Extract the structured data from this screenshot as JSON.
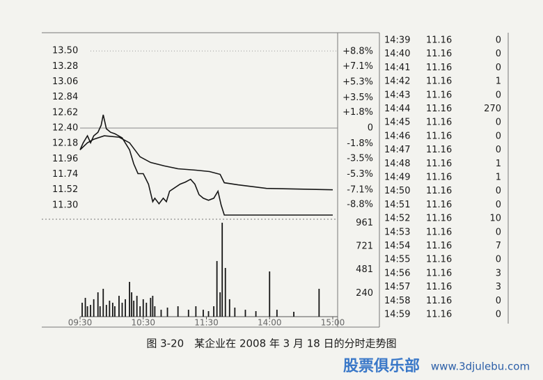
{
  "chart_data": [
    {
      "type": "line",
      "xlim": [
        0,
        240
      ],
      "ylim": [
        11.1,
        13.75
      ],
      "yticks": [
        {
          "value": 13.5,
          "label": "13.50"
        },
        {
          "value": 13.28,
          "label": "13.28"
        },
        {
          "value": 13.06,
          "label": "13.06"
        },
        {
          "value": 12.84,
          "label": "12.84"
        },
        {
          "value": 12.62,
          "label": "12.62"
        },
        {
          "value": 12.4,
          "label": "12.40"
        },
        {
          "value": 12.18,
          "label": "12.18"
        },
        {
          "value": 11.96,
          "label": "11.96"
        },
        {
          "value": 11.74,
          "label": "11.74"
        },
        {
          "value": 11.52,
          "label": "11.52"
        },
        {
          "value": 11.3,
          "label": "11.30"
        }
      ],
      "y2lim": [
        -10.48,
        10.89
      ],
      "y2ticks": [
        {
          "value": 8.8,
          "label": "+8.8%"
        },
        {
          "value": 7.1,
          "label": "+7.1%"
        },
        {
          "value": 5.3,
          "label": "+5.3%"
        },
        {
          "value": 3.5,
          "label": "+3.5%"
        },
        {
          "value": 1.8,
          "label": "+1.8%"
        },
        0,
        {
          "value": -1.8,
          "label": "-1.8%"
        },
        {
          "value": -3.5,
          "label": "-3.5%"
        },
        {
          "value": -5.3,
          "label": "-5.3%"
        },
        {
          "value": -7.1,
          "label": "-7.1%"
        },
        {
          "value": -8.8,
          "label": "-8.8%"
        }
      ],
      "series": [
        {
          "color": "#151515",
          "x": [
            0,
            3,
            7,
            10,
            13,
            17,
            20,
            22,
            25,
            29,
            33,
            40,
            47,
            51,
            55,
            60,
            65,
            69,
            71,
            75,
            79,
            82,
            85,
            90,
            95,
            100,
            105,
            109,
            113,
            117,
            122,
            127,
            131,
            134,
            137,
            143,
            240
          ],
          "values": [
            12.09,
            12.19,
            12.29,
            12.19,
            12.29,
            12.34,
            12.44,
            12.59,
            12.39,
            12.34,
            12.32,
            12.26,
            12.09,
            11.89,
            11.75,
            11.75,
            11.6,
            11.35,
            11.4,
            11.32,
            11.4,
            11.35,
            11.5,
            11.55,
            11.6,
            11.63,
            11.67,
            11.6,
            11.45,
            11.4,
            11.37,
            11.4,
            11.5,
            11.3,
            11.16,
            11.16,
            11.16
          ]
        },
        {
          "color": "#151515",
          "x": [
            0,
            7,
            13,
            23,
            37,
            47,
            57,
            67,
            80,
            93,
            110,
            123,
            133,
            137,
            150,
            177,
            240
          ],
          "values": [
            12.09,
            12.19,
            12.24,
            12.29,
            12.27,
            12.19,
            11.99,
            11.91,
            11.86,
            11.82,
            11.8,
            11.78,
            11.74,
            11.62,
            11.59,
            11.54,
            11.52
          ]
        }
      ]
    },
    {
      "type": "bar",
      "xlim": [
        0,
        240
      ],
      "xticks": [
        {
          "value": 0,
          "label": "09:30"
        },
        {
          "value": 60,
          "label": "10:30"
        },
        {
          "value": 120,
          "label": "11:30"
        },
        {
          "value": 180,
          "label": "14:00"
        },
        {
          "value": 240,
          "label": "15:00"
        }
      ],
      "ylim": [
        0,
        1000
      ],
      "yticks": [
        240,
        481,
        721,
        961
      ],
      "color": "#151515",
      "x": [
        2,
        5,
        7,
        10,
        13,
        17,
        19,
        22,
        25,
        28,
        31,
        33,
        37,
        40,
        43,
        47,
        49,
        51,
        54,
        57,
        60,
        63,
        67,
        69,
        71,
        77,
        83,
        93,
        103,
        110,
        117,
        122,
        127,
        130,
        133,
        135,
        138,
        142,
        147,
        157,
        167,
        180,
        187,
        203,
        227
      ],
      "values": [
        143,
        193,
        107,
        121,
        179,
        250,
        107,
        286,
        121,
        164,
        143,
        107,
        214,
        143,
        179,
        357,
        250,
        164,
        214,
        107,
        179,
        143,
        193,
        214,
        107,
        71,
        93,
        107,
        71,
        107,
        71,
        57,
        107,
        571,
        250,
        964,
        500,
        179,
        93,
        71,
        57,
        464,
        71,
        50,
        286
      ]
    }
  ],
  "table": {
    "rows": [
      [
        "14:39",
        "11.16",
        "0"
      ],
      [
        "14:40",
        "11.16",
        "0"
      ],
      [
        "14:41",
        "11.16",
        "0"
      ],
      [
        "14:42",
        "11.16",
        "1"
      ],
      [
        "14:43",
        "11.16",
        "0"
      ],
      [
        "14:44",
        "11.16",
        "270"
      ],
      [
        "14:45",
        "11.16",
        "0"
      ],
      [
        "14:46",
        "11.16",
        "0"
      ],
      [
        "14:47",
        "11.16",
        "0"
      ],
      [
        "14:48",
        "11.16",
        "1"
      ],
      [
        "14:49",
        "11.16",
        "1"
      ],
      [
        "14:50",
        "11.16",
        "0"
      ],
      [
        "14:51",
        "11.16",
        "0"
      ],
      [
        "14:52",
        "11.16",
        "10"
      ],
      [
        "14:53",
        "11.16",
        "0"
      ],
      [
        "14:54",
        "11.16",
        "7"
      ],
      [
        "14:55",
        "11.16",
        "0"
      ],
      [
        "14:56",
        "11.16",
        "3"
      ],
      [
        "14:57",
        "11.16",
        "3"
      ],
      [
        "14:58",
        "11.16",
        "0"
      ],
      [
        "14:59",
        "11.16",
        "0"
      ]
    ]
  },
  "caption": "图 3-20　某企业在 2008 年 3 月 18 日的分时走势图",
  "watermark": {
    "brand": "股票俱乐部",
    "url": "www.3djulebu.com"
  }
}
